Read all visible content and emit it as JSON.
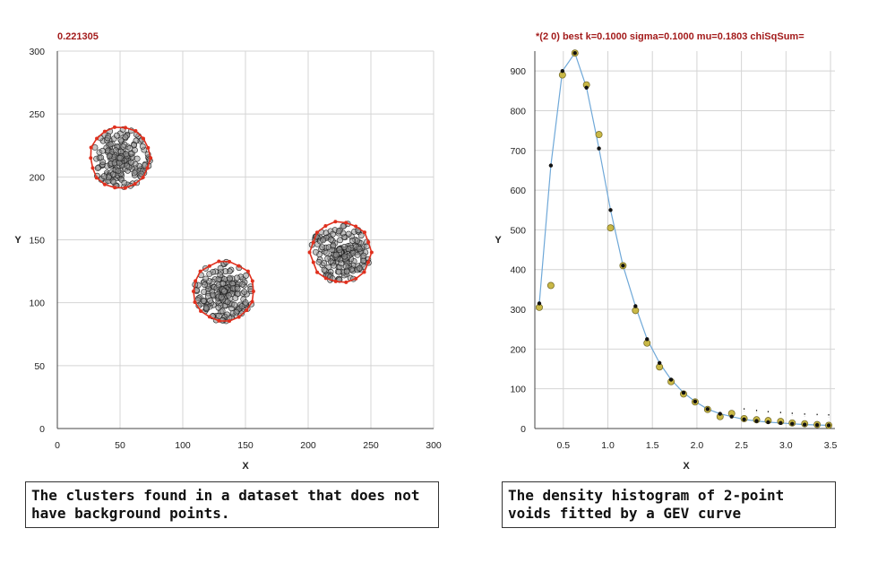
{
  "chart_data": [
    {
      "type": "scatter",
      "title": "0.221305",
      "xlabel": "X",
      "ylabel": "Y",
      "xlim": [
        0,
        300
      ],
      "ylim": [
        0,
        300
      ],
      "xticks": [
        0,
        50,
        100,
        150,
        200,
        250,
        300
      ],
      "yticks": [
        0,
        50,
        100,
        150,
        200,
        250,
        300
      ],
      "grid": true,
      "point_color": "#555555",
      "hull_color": "#e0301e",
      "clusters": [
        {
          "center": [
            50,
            215
          ],
          "radius": 24
        },
        {
          "center": [
            133,
            109
          ],
          "radius": 24
        },
        {
          "center": [
            226,
            140
          ],
          "radius": 24
        }
      ]
    },
    {
      "type": "line",
      "title": "*(2 0) best k=0.1000 sigma=0.1000 mu=0.1803 chiSqSum=",
      "xlabel": "X",
      "ylabel": "Y",
      "xlim": [
        0.18,
        3.55
      ],
      "ylim": [
        0,
        950
      ],
      "xticks": [
        0.5,
        1.0,
        1.5,
        2.0,
        2.5,
        3.0,
        3.5
      ],
      "xtick_labels": [
        "0.5",
        "1.0",
        "1.5",
        "2.0",
        "2.5",
        "3.0",
        "3.5"
      ],
      "yticks": [
        0,
        100,
        200,
        300,
        400,
        500,
        600,
        700,
        800,
        900
      ],
      "grid": true,
      "line_color": "#6fa8d8",
      "observed_color": "#c9b846",
      "fit_color": "#111111",
      "x": [
        0.23,
        0.36,
        0.49,
        0.63,
        0.76,
        0.9,
        1.03,
        1.17,
        1.31,
        1.44,
        1.58,
        1.71,
        1.85,
        1.98,
        2.12,
        2.26,
        2.39,
        2.53,
        2.67,
        2.8,
        2.94,
        3.07,
        3.21,
        3.35,
        3.48
      ],
      "series": [
        {
          "values": [
            305,
            360,
            890,
            945,
            865,
            740,
            505,
            410,
            297,
            215,
            155,
            118,
            87,
            67,
            48,
            30,
            38,
            25,
            22,
            20,
            18,
            14,
            12,
            10,
            8
          ]
        },
        {
          "values": [
            315,
            662,
            900,
            945,
            858,
            705,
            550,
            410,
            308,
            225,
            165,
            123,
            90,
            68,
            49,
            37,
            30,
            23,
            19,
            16,
            14,
            12,
            10,
            9,
            8
          ]
        }
      ]
    }
  ],
  "captions": {
    "left": "The clusters found in a dataset that does not have background points.",
    "right": "The density histogram of 2-point voids fitted by a GEV curve"
  }
}
